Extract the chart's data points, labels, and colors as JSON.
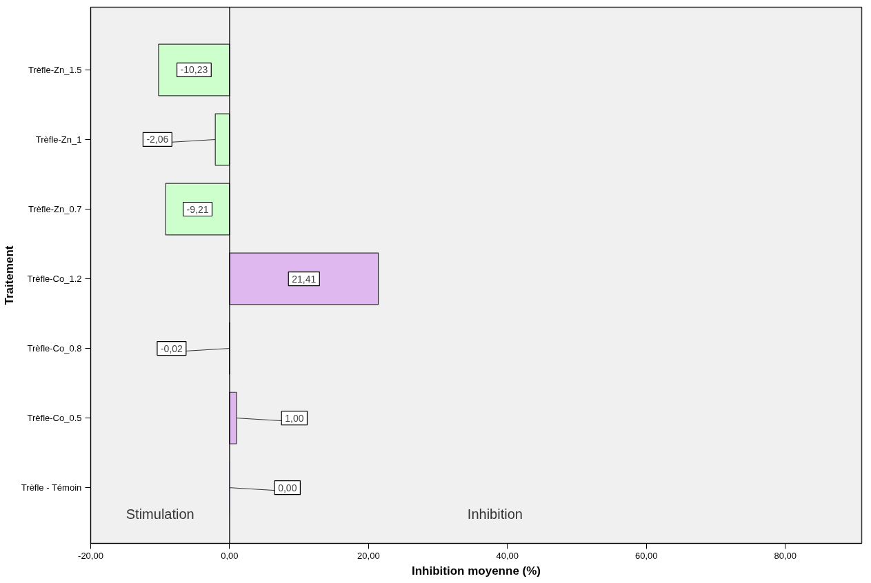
{
  "chart_data": {
    "type": "bar",
    "orientation": "horizontal",
    "xlabel": "Inhibition moyenne (%)",
    "ylabel": "Traitement",
    "categories": [
      "Trèfle-Zn_1.5",
      "Trèfle-Zn_1",
      "Trèfle-Zn_0.7",
      "Trèfle-Co_1.2",
      "Trèfle-Co_0.8",
      "Trèfle-Co_0.5",
      "Trèfle - Témoin"
    ],
    "values": [
      -10.23,
      -2.06,
      -9.21,
      21.41,
      -0.02,
      1.0,
      0.0
    ],
    "colors": [
      "#ccffcc",
      "#ccffcc",
      "#ccffcc",
      "#e0b8f0",
      "#e0b8f0",
      "#e0b8f0",
      "#e0b8f0"
    ],
    "value_labels": [
      "-10,23",
      "-2,06",
      "-9,21",
      "21,41",
      "-0,02",
      "1,00",
      "0,00"
    ],
    "xlim": [
      -20,
      91
    ],
    "xticks": [
      {
        "value": -20,
        "label": "-20,00"
      },
      {
        "value": 0,
        "label": "0,00"
      },
      {
        "value": 20,
        "label": "20,00"
      },
      {
        "value": 40,
        "label": "40,00"
      },
      {
        "value": 60,
        "label": "60,00"
      },
      {
        "value": 80,
        "label": "80,00"
      }
    ],
    "ref_lines": [
      {
        "axis": "x",
        "value": 0,
        "color": "#000000"
      }
    ],
    "annotations": [
      "Stimulation",
      "Inhibition"
    ],
    "grid": false
  }
}
